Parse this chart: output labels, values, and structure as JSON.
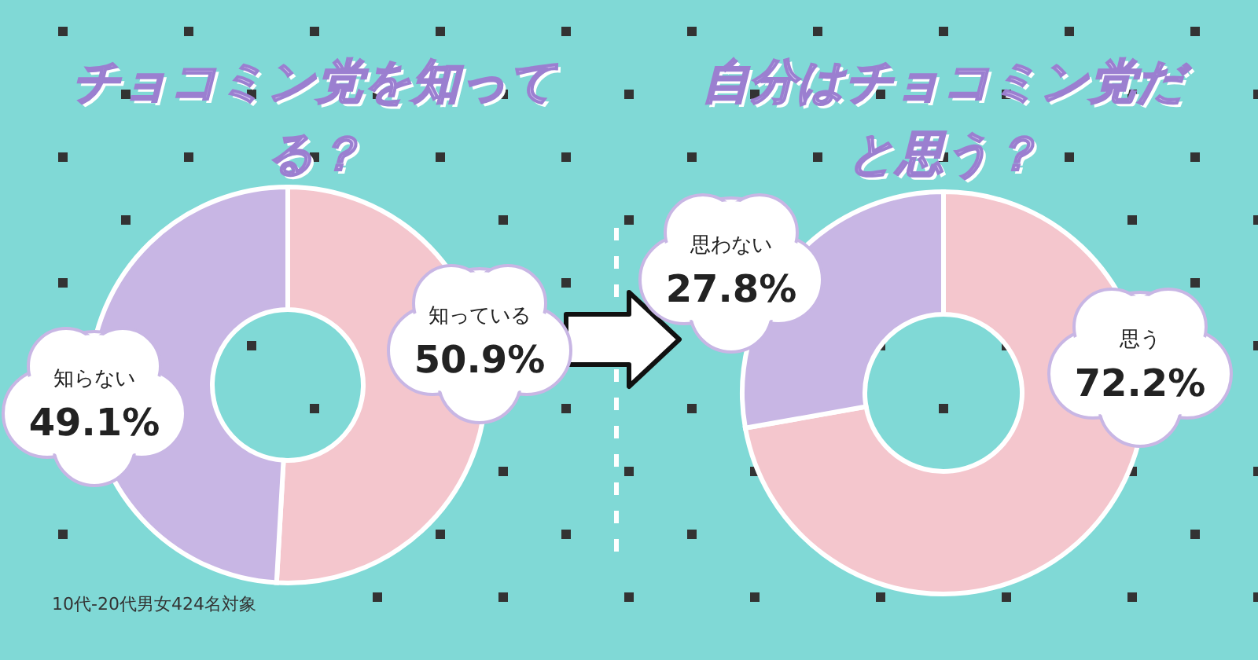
{
  "chart_data": [
    {
      "type": "donut",
      "title": "チョコミン党を知ってる？",
      "categories": [
        "知っている",
        "知らない"
      ],
      "values": [
        50.9,
        49.1
      ],
      "colors": [
        "#f4c6cd",
        "#c8b6e4"
      ],
      "value_labels": [
        "50.9%",
        "49.1%"
      ],
      "annotations": [
        "10代-20代男女424名対象"
      ]
    },
    {
      "type": "donut",
      "title": "自分はチョコミン党だと思う？",
      "categories": [
        "思う",
        "思わない"
      ],
      "values": [
        72.2,
        27.8
      ],
      "colors": [
        "#f4c6cd",
        "#c8b6e4"
      ],
      "value_labels": [
        "72.2%",
        "27.8%"
      ]
    }
  ]
}
